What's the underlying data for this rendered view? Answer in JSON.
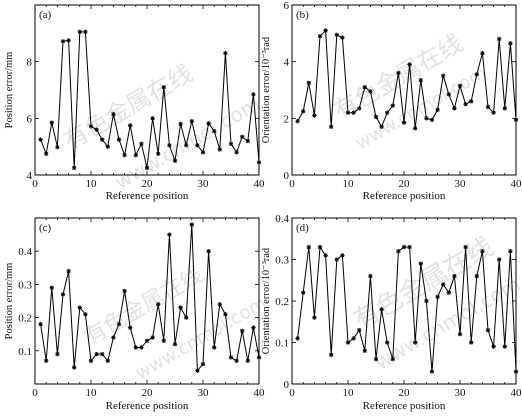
{
  "watermarks": [
    "有色金属在线",
    "www.cnmol.com",
    "有色金属在线",
    "www.cnmol.com"
  ],
  "chart_data": [
    {
      "type": "line",
      "panel_label": "(a)",
      "xlabel": "Reference position",
      "ylabel": "Position error/mm",
      "xlim": [
        0,
        40
      ],
      "ylim": [
        4,
        10
      ],
      "xticks": [
        0,
        10,
        20,
        30,
        40
      ],
      "yticks": [
        4,
        6,
        8
      ],
      "x": [
        1,
        2,
        3,
        4,
        5,
        6,
        7,
        8,
        9,
        10,
        11,
        12,
        13,
        14,
        15,
        16,
        17,
        18,
        19,
        20,
        21,
        22,
        23,
        24,
        25,
        26,
        27,
        28,
        29,
        30,
        31,
        32,
        33,
        34,
        35,
        36,
        37,
        38,
        39,
        40
      ],
      "series": [
        {
          "values": [
            5.25,
            4.75,
            5.85,
            4.98,
            8.72,
            8.75,
            4.25,
            9.05,
            9.05,
            5.72,
            5.6,
            5.25,
            5.0,
            6.15,
            5.25,
            4.7,
            5.75,
            4.7,
            5.1,
            4.25,
            6.0,
            4.75,
            7.1,
            5.05,
            4.5,
            5.8,
            5.05,
            5.9,
            5.05,
            4.8,
            5.82,
            5.55,
            4.9,
            8.3,
            5.1,
            4.8,
            5.35,
            5.2,
            6.85,
            4.45
          ]
        }
      ]
    },
    {
      "type": "line",
      "panel_label": "(b)",
      "xlabel": "Reference position",
      "ylabel": "Orientation error/10⁻³rad",
      "xlim": [
        0,
        40
      ],
      "ylim": [
        0,
        6
      ],
      "xticks": [
        0,
        10,
        20,
        30,
        40
      ],
      "yticks": [
        0,
        2,
        4,
        6
      ],
      "x": [
        1,
        2,
        3,
        4,
        5,
        6,
        7,
        8,
        9,
        10,
        11,
        12,
        13,
        14,
        15,
        16,
        17,
        18,
        19,
        20,
        21,
        22,
        23,
        24,
        25,
        26,
        27,
        28,
        29,
        30,
        31,
        32,
        33,
        34,
        35,
        36,
        37,
        38,
        39,
        40
      ],
      "series": [
        {
          "values": [
            1.9,
            2.25,
            3.25,
            2.1,
            4.9,
            5.1,
            1.7,
            4.95,
            4.85,
            2.2,
            2.2,
            2.35,
            3.1,
            2.95,
            2.05,
            1.7,
            2.2,
            2.45,
            3.6,
            1.85,
            3.9,
            1.65,
            3.35,
            2.0,
            1.95,
            2.3,
            3.5,
            2.85,
            2.35,
            3.15,
            2.5,
            2.6,
            3.55,
            4.3,
            2.4,
            2.2,
            4.8,
            2.35,
            4.65,
            1.95
          ]
        }
      ]
    },
    {
      "type": "line",
      "panel_label": "(c)",
      "xlabel": "Reference position",
      "ylabel": "Position error/mm",
      "xlim": [
        0,
        40
      ],
      "ylim": [
        0,
        0.5
      ],
      "xticks": [
        0,
        10,
        20,
        30,
        40
      ],
      "yticks": [
        0.1,
        0.2,
        0.3,
        0.4
      ],
      "x": [
        1,
        2,
        3,
        4,
        5,
        6,
        7,
        8,
        9,
        10,
        11,
        12,
        13,
        14,
        15,
        16,
        17,
        18,
        19,
        20,
        21,
        22,
        23,
        24,
        25,
        26,
        27,
        28,
        29,
        30,
        31,
        32,
        33,
        34,
        35,
        36,
        37,
        38,
        39,
        40
      ],
      "series": [
        {
          "values": [
            0.18,
            0.07,
            0.29,
            0.09,
            0.27,
            0.34,
            0.05,
            0.23,
            0.21,
            0.07,
            0.09,
            0.09,
            0.07,
            0.14,
            0.18,
            0.28,
            0.17,
            0.11,
            0.11,
            0.13,
            0.14,
            0.24,
            0.13,
            0.45,
            0.12,
            0.23,
            0.2,
            0.48,
            0.04,
            0.06,
            0.4,
            0.11,
            0.24,
            0.21,
            0.08,
            0.07,
            0.16,
            0.07,
            0.17,
            0.08
          ]
        }
      ]
    },
    {
      "type": "line",
      "panel_label": "(d)",
      "xlabel": "Reference position",
      "ylabel": "Orientation error/10⁻³rad",
      "xlim": [
        0,
        40
      ],
      "ylim": [
        0,
        0.4
      ],
      "xticks": [
        0,
        10,
        20,
        30,
        40
      ],
      "yticks": [
        0,
        0.1,
        0.2,
        0.3,
        0.4
      ],
      "x": [
        1,
        2,
        3,
        4,
        5,
        6,
        7,
        8,
        9,
        10,
        11,
        12,
        13,
        14,
        15,
        16,
        17,
        18,
        19,
        20,
        21,
        22,
        23,
        24,
        25,
        26,
        27,
        28,
        29,
        30,
        31,
        32,
        33,
        34,
        35,
        36,
        37,
        38,
        39,
        40
      ],
      "series": [
        {
          "values": [
            0.11,
            0.22,
            0.33,
            0.16,
            0.33,
            0.31,
            0.07,
            0.3,
            0.31,
            0.1,
            0.11,
            0.13,
            0.08,
            0.26,
            0.06,
            0.18,
            0.1,
            0.06,
            0.32,
            0.33,
            0.33,
            0.1,
            0.29,
            0.2,
            0.03,
            0.21,
            0.24,
            0.22,
            0.26,
            0.12,
            0.33,
            0.1,
            0.26,
            0.32,
            0.13,
            0.09,
            0.3,
            0.09,
            0.32,
            0.03
          ]
        }
      ]
    }
  ]
}
